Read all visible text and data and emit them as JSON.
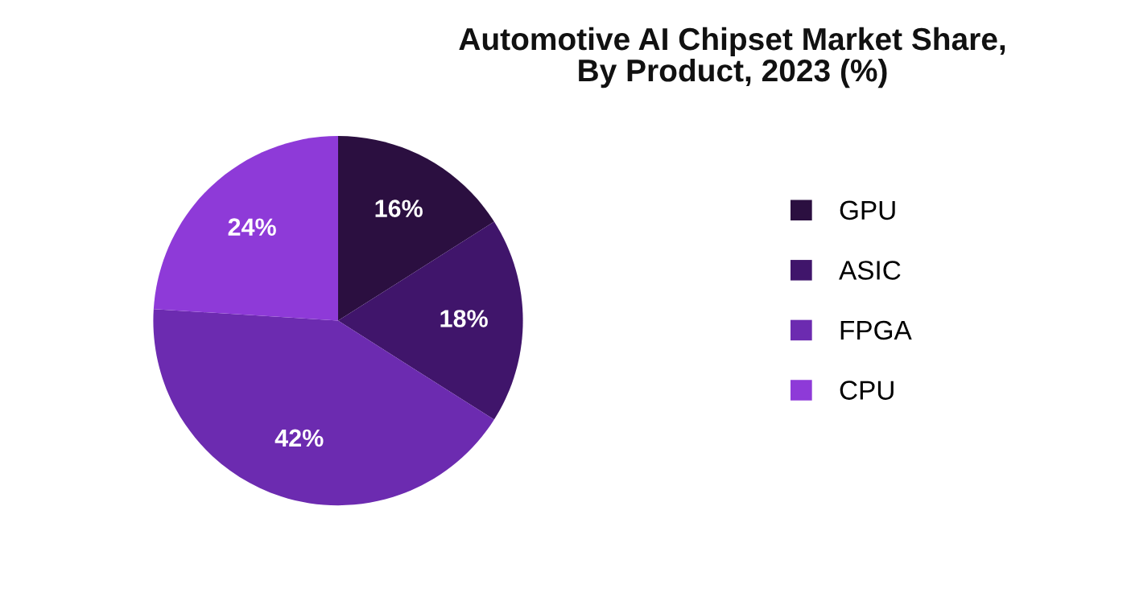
{
  "chart_data": {
    "type": "pie",
    "title": "Automotive AI Chipset Market Share,\nBy Product, 2023 (%)",
    "categories": [
      "GPU",
      "ASIC",
      "FPGA",
      "CPU"
    ],
    "values": [
      16,
      18,
      42,
      24
    ],
    "colors": [
      "#2b0f40",
      "#40156b",
      "#6c2bb0",
      "#8e3ad8"
    ],
    "value_labels": [
      "16%",
      "18%",
      "42%",
      "24%"
    ],
    "legend": "right"
  }
}
